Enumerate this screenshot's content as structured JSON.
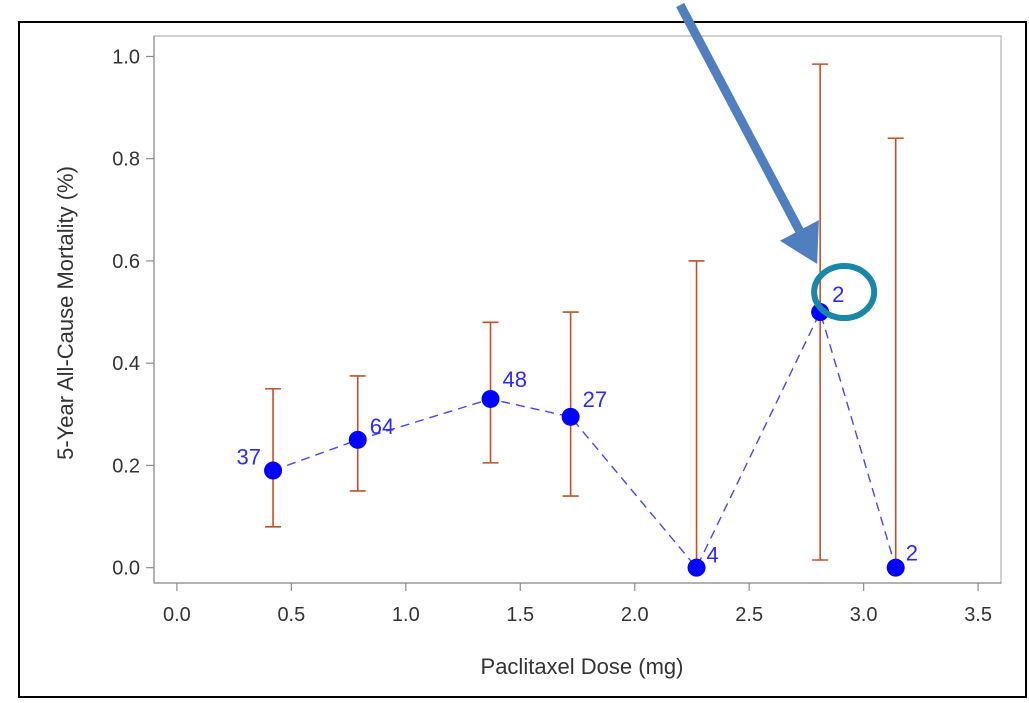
{
  "chart_data": {
    "type": "scatter",
    "title": "",
    "xlabel": "Paclitaxel Dose (mg)",
    "ylabel": "5-Year All-Cause Mortality (%)",
    "xlim": [
      -0.1,
      3.6
    ],
    "ylim": [
      -0.03,
      1.04
    ],
    "x_ticks": [
      0.0,
      0.5,
      1.0,
      1.5,
      2.0,
      2.5,
      3.0,
      3.5
    ],
    "x_tick_labels": [
      "0.0",
      "0.5",
      "1.0",
      "1.5",
      "2.0",
      "2.5",
      "3.0",
      "3.5"
    ],
    "y_ticks": [
      0.0,
      0.2,
      0.4,
      0.6,
      0.8,
      1.0
    ],
    "y_tick_labels": [
      "0.0",
      "0.2",
      "0.4",
      "0.6",
      "0.8",
      "1.0"
    ],
    "grid": false,
    "connector_line": "dashed",
    "series": [
      {
        "points": [
          {
            "x": 0.42,
            "y": 0.19,
            "lower": 0.08,
            "upper": 0.35,
            "label": "37"
          },
          {
            "x": 0.79,
            "y": 0.25,
            "lower": 0.15,
            "upper": 0.375,
            "label": "64"
          },
          {
            "x": 1.37,
            "y": 0.33,
            "lower": 0.205,
            "upper": 0.48,
            "label": "48"
          },
          {
            "x": 1.72,
            "y": 0.295,
            "lower": 0.14,
            "upper": 0.5,
            "label": "27"
          },
          {
            "x": 2.27,
            "y": 0.0,
            "lower": 0.0,
            "upper": 0.6,
            "label": "4"
          },
          {
            "x": 2.81,
            "y": 0.5,
            "lower": 0.015,
            "upper": 0.985,
            "label": "2"
          },
          {
            "x": 3.14,
            "y": 0.0,
            "lower": 0.0,
            "upper": 0.84,
            "label": "2"
          }
        ]
      }
    ],
    "annotation": {
      "type": "arrow-and-circle",
      "target_point_index": 5
    },
    "colors": {
      "marker": "#0000ff",
      "connector": "#4444ff",
      "error_bar": "#c0502a",
      "data_label": "#2a2aff",
      "arrow": "#4f7fbf",
      "highlight_circle": "#1a86a8",
      "axis": "#8c8c8c",
      "frame": "#b0b0b0",
      "outer_border": "#000000"
    }
  }
}
